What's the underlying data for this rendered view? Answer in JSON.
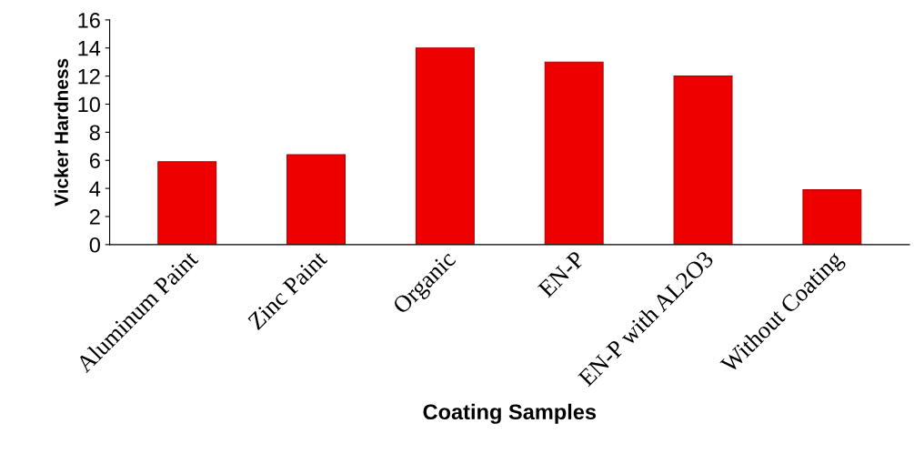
{
  "chart_data": {
    "type": "bar",
    "xlabel": "Coating Samples",
    "ylabel": "Vicker Hardness",
    "categories": [
      "Aluminum Paint",
      "Zinc Paint",
      "Organic",
      "EN-P",
      "EN-P with AL2O3",
      "Without Coating"
    ],
    "values": [
      5.9,
      6.4,
      14,
      13,
      12,
      3.9
    ],
    "color": "#ee0000",
    "ylim": [
      0,
      16
    ],
    "yticks": [
      0,
      2,
      4,
      6,
      8,
      10,
      12,
      14,
      16
    ],
    "grid": false
  }
}
